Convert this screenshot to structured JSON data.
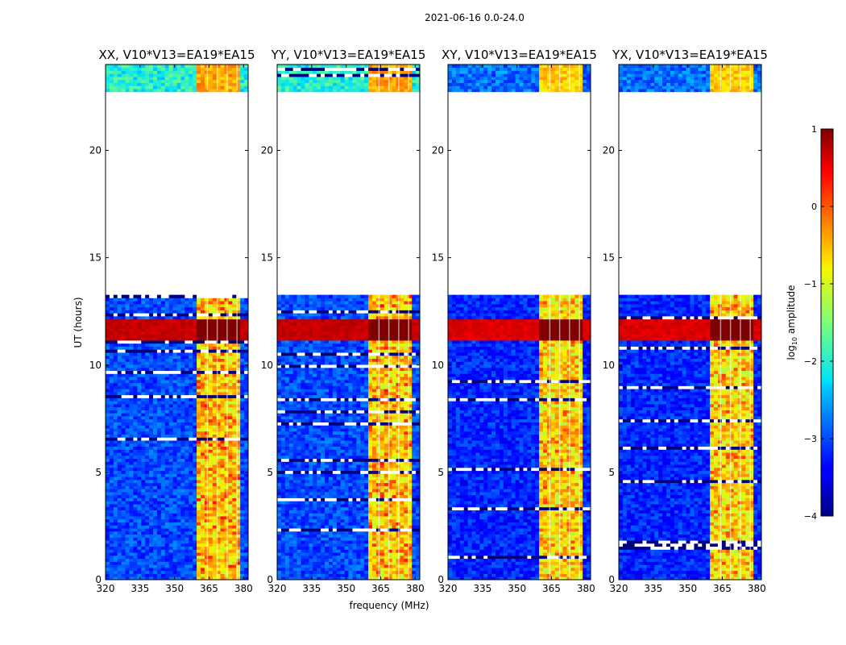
{
  "chart_data": {
    "type": "heatmap",
    "suptitle": "2021-06-16 0.0-24.0",
    "xlabel": "frequency (MHz)",
    "ylabel": "UT (hours)",
    "xlim": [
      320,
      382
    ],
    "ylim": [
      0,
      24
    ],
    "xticks": [
      320,
      335,
      350,
      365,
      380
    ],
    "yticks": [
      0,
      5,
      10,
      15,
      20
    ],
    "colorbar": {
      "label_main": "log",
      "label_sub": "10",
      "label_tail": " amplitude",
      "range": [
        -4,
        1
      ],
      "ticks": [
        -4,
        -3,
        -2,
        -1,
        0,
        1
      ],
      "tick_labels": [
        "−4",
        "−3",
        "−2",
        "−1",
        "0",
        "1"
      ],
      "colormap": "jet"
    },
    "data_gaps_hours": [
      [
        13.3,
        22.8
      ]
    ],
    "rfi_band_mhz": [
      360,
      379
    ],
    "strong_rfi_hours": [
      11.1,
      12.2
    ],
    "panels": [
      {
        "title": "XX, V10*V13=EA19*EA15",
        "noise_level": -3.0,
        "band_level": -0.8,
        "band_peak": -0.1,
        "rfi_time_level": 0.8,
        "top_band_level": -2.0
      },
      {
        "title": "YY, V10*V13=EA19*EA15",
        "noise_level": -3.0,
        "band_level": -0.8,
        "band_peak": -0.1,
        "rfi_time_level": 0.8,
        "top_band_level": -2.0
      },
      {
        "title": "XY, V10*V13=EA19*EA15",
        "noise_level": -3.2,
        "band_level": -0.9,
        "band_peak": -0.3,
        "rfi_time_level": 0.7,
        "top_band_level": -2.8
      },
      {
        "title": "YX, V10*V13=EA19*EA15",
        "noise_level": -3.2,
        "band_level": -0.9,
        "band_peak": -0.3,
        "rfi_time_level": 0.7,
        "top_band_level": -2.8
      }
    ]
  }
}
